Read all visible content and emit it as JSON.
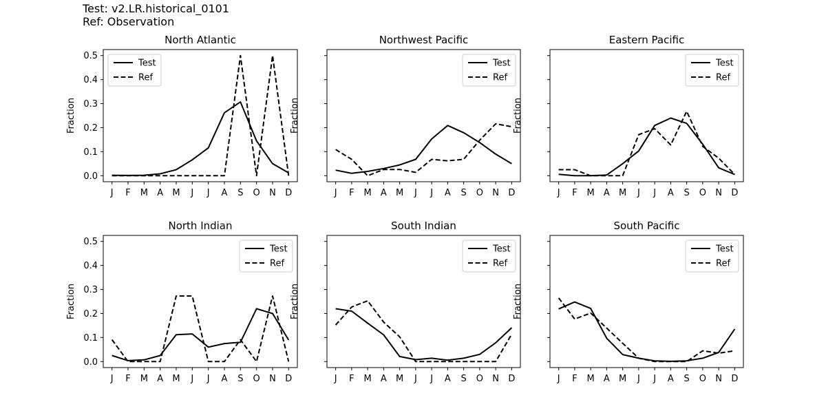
{
  "header": {
    "test_line": "Test: v2.LR.historical_0101",
    "ref_line": "Ref: Observation"
  },
  "chart_data": [
    {
      "type": "line",
      "title": "North Atlantic",
      "ylabel": "Fraction",
      "categories": [
        "J",
        "F",
        "M",
        "A",
        "M",
        "J",
        "J",
        "A",
        "S",
        "O",
        "N",
        "D"
      ],
      "ylim": [
        -0.025,
        0.525
      ],
      "yticks": [
        "0.0",
        "0.1",
        "0.2",
        "0.3",
        "0.4",
        "0.5"
      ],
      "show_ytick_labels": true,
      "legend": "top-left",
      "series": [
        {
          "name": "Test",
          "style": "solid",
          "values": [
            0.002,
            0.001,
            0.002,
            0.008,
            0.025,
            0.066,
            0.116,
            0.262,
            0.307,
            0.145,
            0.05,
            0.012
          ]
        },
        {
          "name": "Ref",
          "style": "dashed",
          "values": [
            0,
            0,
            0,
            0,
            0,
            0,
            0,
            0,
            0.5,
            0,
            0.5,
            0
          ]
        }
      ]
    },
    {
      "type": "line",
      "title": "Northwest Pacific",
      "ylabel": "Fraction",
      "categories": [
        "J",
        "F",
        "M",
        "A",
        "M",
        "J",
        "J",
        "A",
        "S",
        "O",
        "N",
        "D"
      ],
      "ylim": [
        -0.025,
        0.525
      ],
      "yticks": [
        "0.0",
        "0.1",
        "0.2",
        "0.3",
        "0.4",
        "0.5"
      ],
      "show_ytick_labels": false,
      "legend": "top-right",
      "series": [
        {
          "name": "Test",
          "style": "solid",
          "values": [
            0.023,
            0.01,
            0.018,
            0.03,
            0.045,
            0.068,
            0.153,
            0.209,
            0.179,
            0.138,
            0.09,
            0.05
          ]
        },
        {
          "name": "Ref",
          "style": "dashed",
          "values": [
            0.109,
            0.068,
            0.0,
            0.026,
            0.026,
            0.014,
            0.068,
            0.062,
            0.068,
            0.148,
            0.216,
            0.204
          ]
        }
      ]
    },
    {
      "type": "line",
      "title": "Eastern Pacific",
      "ylabel": "Fraction",
      "categories": [
        "J",
        "F",
        "M",
        "A",
        "M",
        "J",
        "J",
        "A",
        "S",
        "O",
        "N",
        "D"
      ],
      "ylim": [
        -0.025,
        0.525
      ],
      "yticks": [
        "0.0",
        "0.1",
        "0.2",
        "0.3",
        "0.4",
        "0.5"
      ],
      "show_ytick_labels": false,
      "legend": "top-right",
      "series": [
        {
          "name": "Test",
          "style": "solid",
          "values": [
            0.006,
            0.0,
            0.0,
            0.003,
            0.05,
            0.103,
            0.209,
            0.24,
            0.218,
            0.131,
            0.033,
            0.005
          ]
        },
        {
          "name": "Ref",
          "style": "dashed",
          "values": [
            0.025,
            0.025,
            0.0,
            0.0,
            0.0,
            0.171,
            0.196,
            0.128,
            0.268,
            0.122,
            0.073,
            0.005
          ]
        }
      ]
    },
    {
      "type": "line",
      "title": "North Indian",
      "ylabel": "Fraction",
      "categories": [
        "J",
        "F",
        "M",
        "A",
        "M",
        "J",
        "J",
        "A",
        "S",
        "O",
        "N",
        "D"
      ],
      "ylim": [
        -0.025,
        0.525
      ],
      "yticks": [
        "0.0",
        "0.1",
        "0.2",
        "0.3",
        "0.4",
        "0.5"
      ],
      "show_ytick_labels": true,
      "legend": "top-right",
      "series": [
        {
          "name": "Test",
          "style": "solid",
          "values": [
            0.025,
            0.004,
            0.007,
            0.025,
            0.112,
            0.115,
            0.06,
            0.075,
            0.08,
            0.22,
            0.2,
            0.09
          ]
        },
        {
          "name": "Ref",
          "style": "dashed",
          "values": [
            0.091,
            0.0,
            0.0,
            0.0,
            0.273,
            0.273,
            0.0,
            0.0,
            0.091,
            0.0,
            0.273,
            0.0
          ]
        }
      ]
    },
    {
      "type": "line",
      "title": "South Indian",
      "ylabel": "Fraction",
      "categories": [
        "J",
        "F",
        "M",
        "A",
        "M",
        "J",
        "J",
        "A",
        "S",
        "O",
        "N",
        "D"
      ],
      "ylim": [
        -0.025,
        0.525
      ],
      "yticks": [
        "0.0",
        "0.1",
        "0.2",
        "0.3",
        "0.4",
        "0.5"
      ],
      "show_ytick_labels": false,
      "legend": "top-right",
      "series": [
        {
          "name": "Test",
          "style": "solid",
          "values": [
            0.22,
            0.21,
            0.16,
            0.111,
            0.021,
            0.008,
            0.014,
            0.006,
            0.014,
            0.03,
            0.078,
            0.141
          ]
        },
        {
          "name": "Ref",
          "style": "dashed",
          "values": [
            0.152,
            0.227,
            0.253,
            0.164,
            0.103,
            0.0,
            0.0,
            0.0,
            0.0,
            0.0,
            0.0,
            0.114
          ]
        }
      ]
    },
    {
      "type": "line",
      "title": "South Pacific",
      "ylabel": "Fraction",
      "categories": [
        "J",
        "F",
        "M",
        "A",
        "M",
        "J",
        "J",
        "A",
        "S",
        "O",
        "N",
        "D"
      ],
      "ylim": [
        -0.025,
        0.525
      ],
      "yticks": [
        "0.0",
        "0.1",
        "0.2",
        "0.3",
        "0.4",
        "0.5"
      ],
      "show_ytick_labels": false,
      "legend": "top-right",
      "series": [
        {
          "name": "Test",
          "style": "solid",
          "values": [
            0.219,
            0.248,
            0.221,
            0.097,
            0.029,
            0.014,
            0.003,
            0.001,
            0.003,
            0.014,
            0.038,
            0.135
          ]
        },
        {
          "name": "Ref",
          "style": "dashed",
          "values": [
            0.265,
            0.177,
            0.202,
            0.139,
            0.076,
            0.014,
            0.0,
            0.0,
            0.0,
            0.045,
            0.035,
            0.045
          ]
        }
      ]
    }
  ]
}
